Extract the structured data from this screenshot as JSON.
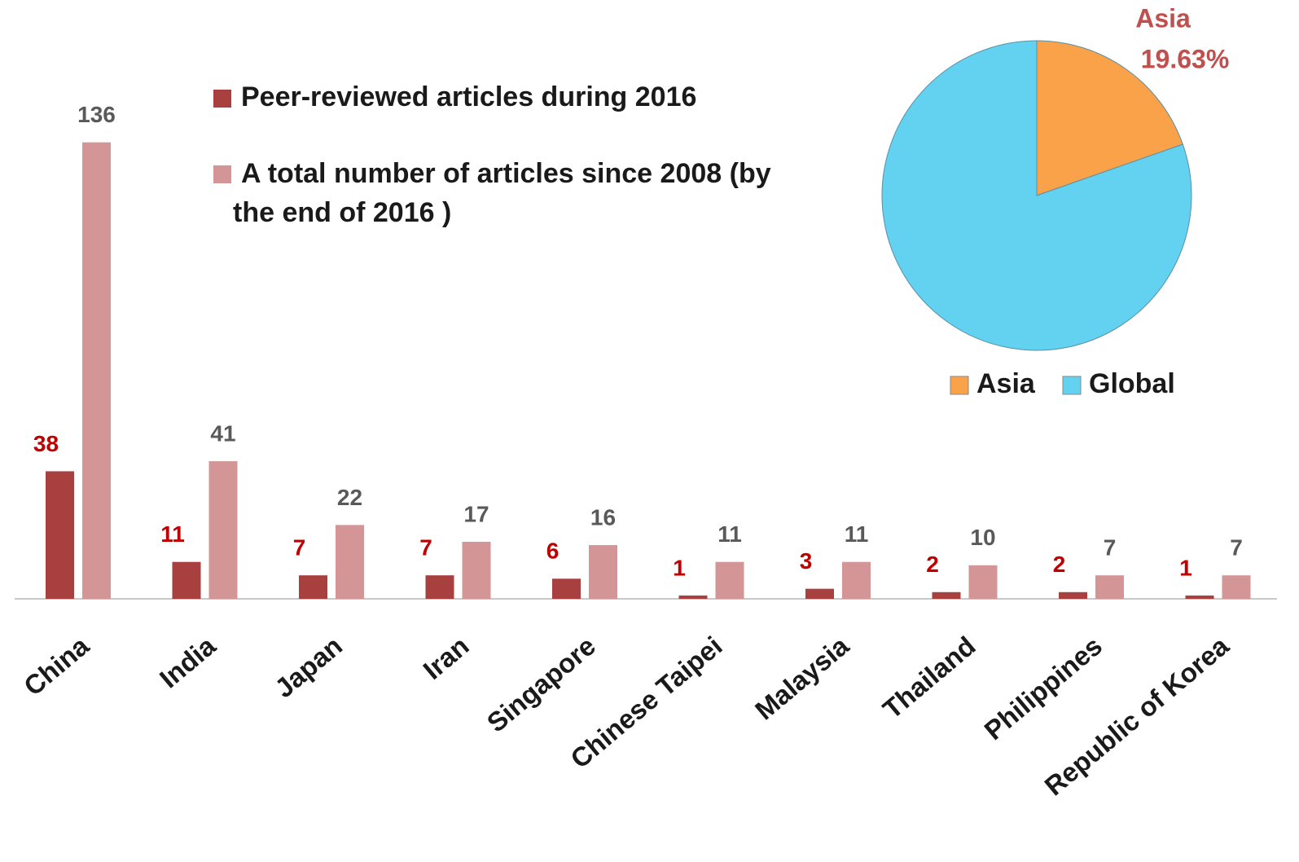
{
  "chart_data": [
    {
      "type": "bar",
      "categories": [
        "China",
        "India",
        "Japan",
        "Iran",
        "Singapore",
        "Chinese Taipei",
        "Malaysia",
        "Thailand",
        "Philippines",
        "Republic of Korea"
      ],
      "series": [
        {
          "name": "Peer-reviewed articles during 2016",
          "color": "#a8403f",
          "label_color": "#c00000",
          "values": [
            38,
            11,
            7,
            7,
            6,
            1,
            3,
            2,
            2,
            1
          ]
        },
        {
          "name": "A total number of articles since 2008 (by the end of 2016 )",
          "color": "#d39595",
          "label_color": "#595959",
          "values": [
            136,
            41,
            22,
            17,
            16,
            11,
            11,
            10,
            7,
            7
          ]
        }
      ]
    },
    {
      "type": "pie",
      "categories": [
        "Asia",
        "Global"
      ],
      "values": [
        19.63,
        80.37
      ],
      "value_labels": [
        "19.63%",
        null
      ],
      "colors": [
        "#f9a24a",
        "#62d2f0"
      ]
    }
  ]
}
